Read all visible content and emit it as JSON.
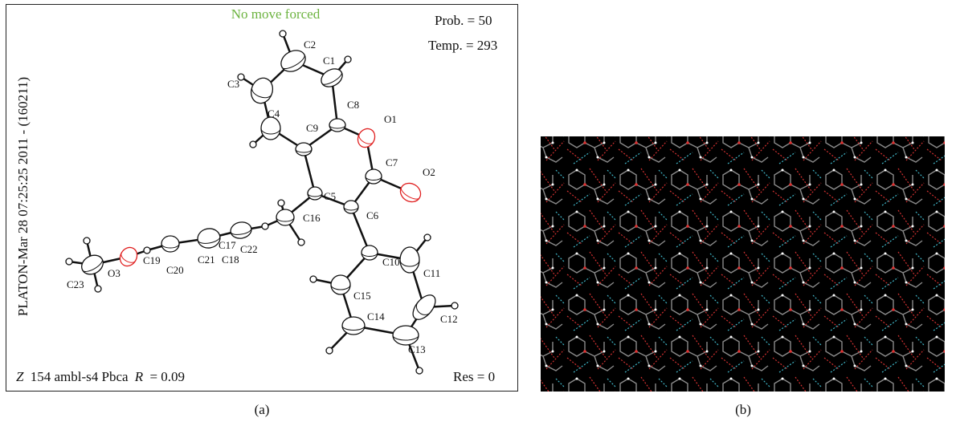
{
  "panel_a": {
    "header": "No move forced",
    "prob": "Prob. = 50",
    "temp": "Temp. = 293",
    "side_text": "PLATON-Mar 28 07:25:25 2011 - (160211)",
    "footer_left": {
      "z": "Z",
      "text": "154 ambl-s4 Pbca",
      "r": "R",
      "value": "= 0.09"
    },
    "footer_right": "Res = 0",
    "atom_labels": [
      "C1",
      "C2",
      "C3",
      "C4",
      "C5",
      "C6",
      "C7",
      "C8",
      "C9",
      "C10",
      "C11",
      "C12",
      "C13",
      "C14",
      "C15",
      "C16",
      "C17",
      "C18",
      "C19",
      "C20",
      "C21",
      "C22",
      "C23",
      "O1",
      "O2",
      "O3"
    ],
    "caption": "(a)"
  },
  "panel_b": {
    "caption": "(b)"
  }
}
